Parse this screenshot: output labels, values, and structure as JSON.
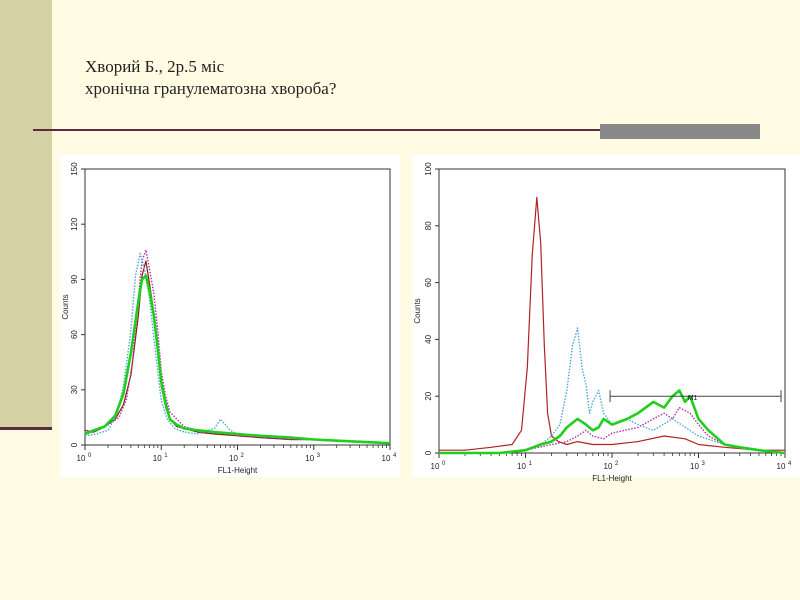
{
  "slide": {
    "title_line1": "Хворий Б., 2р.5 міс",
    "title_line2": "хронічна гранулематозна хвороба?"
  },
  "colors": {
    "background": "#fffce3",
    "sidebar": "#d5d2a6",
    "divider": "#5b2a3c",
    "accent_bar": "#888888"
  },
  "chart_data": [
    {
      "type": "line",
      "xlabel": "FL1-Height",
      "ylabel": "Counts",
      "x_scale": "log",
      "xlim": [
        1,
        10000
      ],
      "ylim": [
        0,
        150
      ],
      "x_ticks": [
        {
          "value": 1,
          "base": "10",
          "exp": "0"
        },
        {
          "value": 10,
          "base": "10",
          "exp": "1"
        },
        {
          "value": 100,
          "base": "10",
          "exp": "2"
        },
        {
          "value": 1000,
          "base": "10",
          "exp": "3"
        },
        {
          "value": 10000,
          "base": "10",
          "exp": "4"
        }
      ],
      "y_ticks": [
        "0",
        "30",
        "60",
        "90",
        "120",
        "150"
      ],
      "y_tick_values": [
        0,
        30,
        60,
        90,
        120,
        150
      ],
      "series": [
        {
          "color": "#8b1a1a",
          "style": "solid",
          "width": 1.2,
          "x": [
            1,
            1.3,
            1.8,
            2.5,
            3.2,
            4,
            5,
            5.6,
            6.3,
            7,
            8,
            9,
            10,
            11.5,
            13,
            16,
            20,
            30,
            50,
            100,
            200,
            500,
            1000,
            3000,
            10000
          ],
          "y": [
            8,
            7,
            10,
            14,
            22,
            38,
            70,
            92,
            100,
            88,
            72,
            55,
            32,
            20,
            14,
            10,
            9,
            7,
            6,
            5,
            4,
            3,
            3,
            2,
            1
          ]
        },
        {
          "color": "#b22fa0",
          "style": "dotted",
          "width": 1.4,
          "x": [
            1,
            1.5,
            2,
            2.8,
            3.5,
            4.2,
            5,
            5.6,
            6.3,
            7,
            8,
            9,
            10,
            11.5,
            13,
            16,
            20,
            30,
            50,
            100,
            200,
            500,
            1000,
            3000,
            10000
          ],
          "y": [
            6,
            8,
            11,
            15,
            25,
            45,
            80,
            100,
            106,
            96,
            82,
            62,
            40,
            26,
            18,
            14,
            10,
            8,
            7,
            5,
            4,
            3,
            3,
            2,
            1
          ]
        },
        {
          "color": "#4aa8d6",
          "style": "dotted",
          "width": 1.4,
          "x": [
            1,
            1.4,
            2,
            2.6,
            3.2,
            4,
            4.6,
            5.3,
            6,
            7,
            8,
            9,
            10,
            12,
            15,
            20,
            30,
            50,
            60,
            80,
            100,
            200,
            500,
            1000,
            3000,
            10000
          ],
          "y": [
            5,
            6,
            8,
            16,
            32,
            62,
            92,
            104,
            96,
            80,
            58,
            40,
            24,
            14,
            9,
            7,
            6,
            9,
            14,
            8,
            6,
            5,
            4,
            3,
            2,
            1
          ]
        },
        {
          "color": "#1ecf1e",
          "style": "solid",
          "width": 2.6,
          "x": [
            1,
            1.3,
            1.8,
            2.5,
            3.2,
            4,
            5,
            5.6,
            6.3,
            7,
            8,
            9,
            10,
            11.5,
            13,
            16,
            20,
            30,
            50,
            100,
            200,
            500,
            1000,
            3000,
            10000
          ],
          "y": [
            6,
            8,
            10,
            16,
            28,
            50,
            78,
            90,
            92,
            84,
            70,
            52,
            34,
            22,
            14,
            11,
            9,
            8,
            7,
            6,
            5,
            4,
            3,
            2,
            1
          ]
        }
      ]
    },
    {
      "type": "line",
      "xlabel": "FL1-Height",
      "ylabel": "Counts",
      "x_scale": "log",
      "xlim": [
        1,
        10000
      ],
      "ylim": [
        0,
        100
      ],
      "x_ticks": [
        {
          "value": 1,
          "base": "10",
          "exp": "0"
        },
        {
          "value": 10,
          "base": "10",
          "exp": "1"
        },
        {
          "value": 100,
          "base": "10",
          "exp": "2"
        },
        {
          "value": 1000,
          "base": "10",
          "exp": "3"
        },
        {
          "value": 10000,
          "base": "10",
          "exp": "4"
        }
      ],
      "y_ticks": [
        "0",
        "20",
        "40",
        "60",
        "80",
        "100"
      ],
      "y_tick_values": [
        0,
        20,
        40,
        60,
        80,
        100
      ],
      "marker": {
        "label": "M1",
        "x_range": [
          95,
          9000
        ],
        "y": 20
      },
      "series": [
        {
          "color": "#b22222",
          "style": "solid",
          "width": 1.2,
          "x": [
            1,
            2,
            4,
            7,
            9,
            10.5,
            12,
            13.5,
            15,
            16.5,
            18,
            20,
            24,
            30,
            40,
            60,
            100,
            200,
            400,
            700,
            1000,
            2000,
            5000,
            10000
          ],
          "y": [
            1,
            1,
            2,
            3,
            8,
            30,
            70,
            90,
            74,
            38,
            14,
            6,
            4,
            3,
            4,
            3,
            3,
            4,
            6,
            5,
            3,
            2,
            1,
            1
          ]
        },
        {
          "color": "#b22fa0",
          "style": "dotted",
          "width": 1.4,
          "x": [
            1,
            5,
            10,
            20,
            30,
            40,
            50,
            60,
            80,
            100,
            200,
            300,
            400,
            500,
            600,
            800,
            1000,
            1300,
            2000,
            5000,
            10000
          ],
          "y": [
            0,
            0,
            1,
            3,
            4,
            6,
            8,
            6,
            5,
            7,
            9,
            12,
            14,
            12,
            16,
            14,
            10,
            6,
            3,
            1,
            0
          ]
        },
        {
          "color": "#4aa8d6",
          "style": "dotted",
          "width": 1.4,
          "x": [
            1,
            5,
            10,
            15,
            20,
            25,
            30,
            35,
            40,
            45,
            50,
            55,
            60,
            70,
            80,
            100,
            150,
            200,
            300,
            500,
            1000,
            2000,
            5000,
            10000
          ],
          "y": [
            0,
            0,
            1,
            3,
            6,
            10,
            22,
            38,
            44,
            30,
            24,
            14,
            18,
            22,
            14,
            10,
            12,
            10,
            8,
            12,
            6,
            3,
            1,
            0
          ]
        },
        {
          "color": "#1ecf1e",
          "style": "solid",
          "width": 2.6,
          "x": [
            1,
            5,
            10,
            15,
            20,
            25,
            30,
            40,
            50,
            60,
            70,
            80,
            100,
            150,
            200,
            300,
            400,
            500,
            600,
            700,
            800,
            1000,
            1300,
            2000,
            3000,
            5000,
            10000
          ],
          "y": [
            0,
            0,
            1,
            3,
            4,
            6,
            9,
            12,
            10,
            8,
            9,
            12,
            10,
            12,
            14,
            18,
            16,
            20,
            22,
            18,
            20,
            12,
            8,
            3,
            2,
            1,
            0
          ]
        }
      ]
    }
  ]
}
